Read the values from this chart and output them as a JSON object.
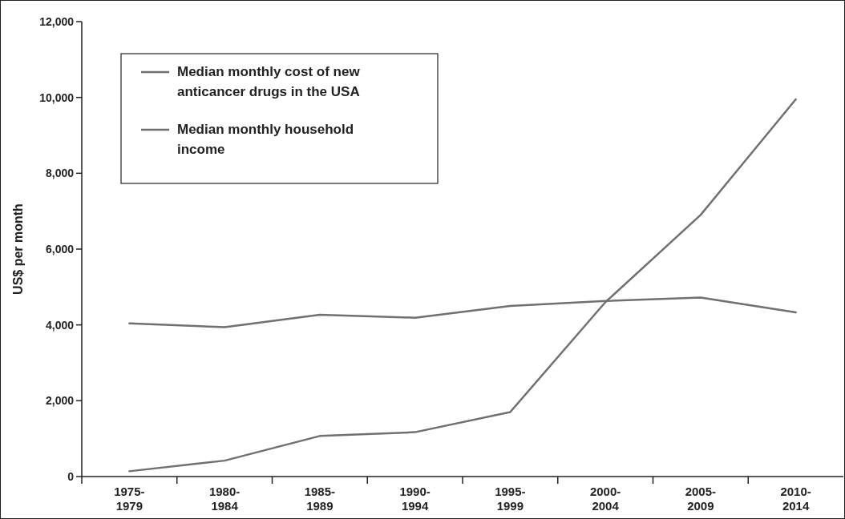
{
  "chart_data": {
    "type": "line",
    "ylabel": "US$ per month",
    "categories": [
      "1975-\n1979",
      "1980-\n1984",
      "1985-\n1989",
      "1990-\n1994",
      "1995-\n1999",
      "2000-\n2004",
      "2005-\n2009",
      "2010-\n2014"
    ],
    "series": [
      {
        "name": "Median monthly cost of new anticancer drugs in the USA",
        "color": "#707070",
        "values": [
          140,
          420,
          1070,
          1170,
          1700,
          4600,
          6900,
          9950
        ]
      },
      {
        "name": "Median monthly household income",
        "color": "#707070",
        "values": [
          4040,
          3940,
          4270,
          4190,
          4500,
          4630,
          4720,
          4330
        ]
      }
    ],
    "ylim": [
      0,
      12000
    ],
    "yticks": [
      {
        "value": 0,
        "label": "0"
      },
      {
        "value": 2000,
        "label": "2,000"
      },
      {
        "value": 4000,
        "label": "4,000"
      },
      {
        "value": 6000,
        "label": "6,000"
      },
      {
        "value": 8000,
        "label": "8,000"
      },
      {
        "value": 10000,
        "label": "10,000"
      },
      {
        "value": 12000,
        "label": "12,000"
      }
    ],
    "legend": "top left",
    "grid": false,
    "marker": "none",
    "line_style": "solid"
  }
}
